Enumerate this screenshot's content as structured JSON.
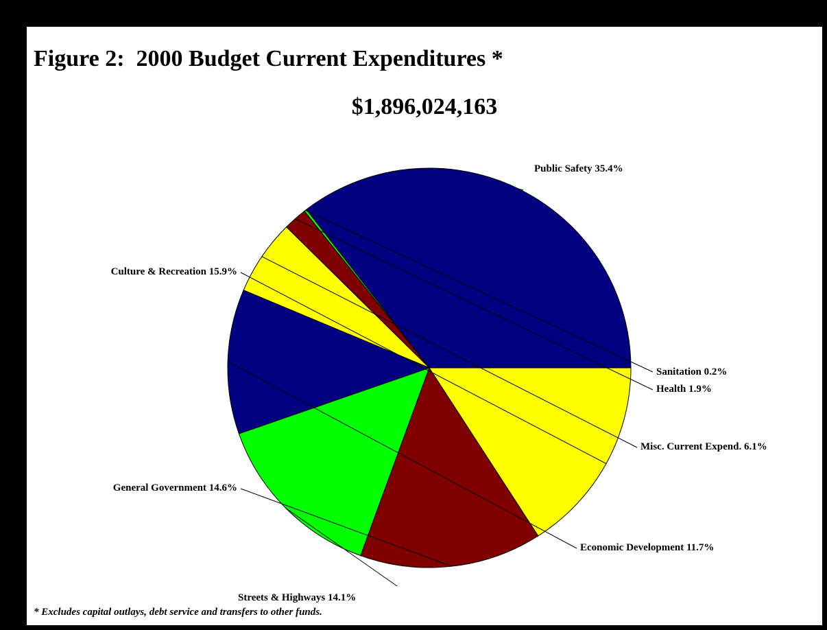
{
  "chart_data": {
    "type": "pie",
    "title": "Figure 2:  2000 Budget Current Expenditures *",
    "subtitle": "$1,896,024,163",
    "footnote": "* Excludes capital outlays, debt service and transfers to other funds.",
    "slices": [
      {
        "label": "Public Safety 35.4%",
        "value": 35.4,
        "color": "#000080"
      },
      {
        "label": "Sanitation 0.2%",
        "value": 0.2,
        "color": "#00ff00"
      },
      {
        "label": "Health 1.9%",
        "value": 1.9,
        "color": "#800000"
      },
      {
        "label": "Misc. Current Expend. 6.1%",
        "value": 6.1,
        "color": "#ffff00"
      },
      {
        "label": "Economic Development 11.7%",
        "value": 11.7,
        "color": "#000080"
      },
      {
        "label": "Streets & Highways 14.1%",
        "value": 14.1,
        "color": "#00ff00"
      },
      {
        "label": "General Government 14.6%",
        "value": 14.6,
        "color": "#800000"
      },
      {
        "label": "Culture & Recreation 15.9%",
        "value": 15.9,
        "color": "#ffff00"
      }
    ]
  }
}
